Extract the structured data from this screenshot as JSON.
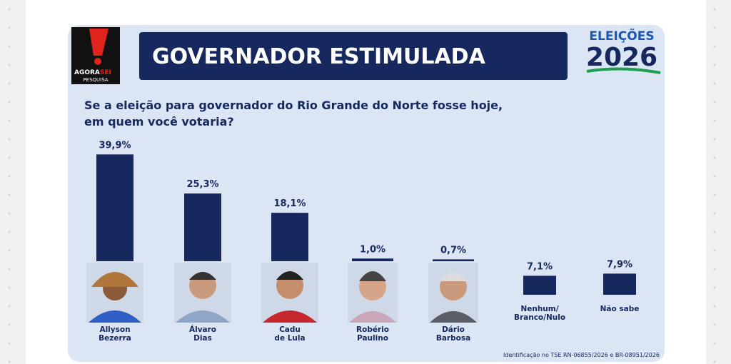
{
  "logo": {
    "name_a": "AGORA",
    "name_b": "SEI",
    "tagline": "PESQUISA"
  },
  "badge": {
    "line1": "ELEIÇÕES",
    "line2": "2026"
  },
  "footer": "Identificação no TSE RN-06855/2026 e BR-08951/2026",
  "chart_data": {
    "type": "bar",
    "title": "GOVERNADOR ESTIMULADA",
    "subtitle": "Se a eleição para governador do Rio Grande do Norte fosse hoje,\nem quem você votaria?",
    "categories": [
      "Allyson\nBezerra",
      "Álvaro\nDias",
      "Cadu\nde Lula",
      "Robério\nPaulino",
      "Dário\nBarbosa",
      "Nenhum/\nBranco/Nulo",
      "Não sabe"
    ],
    "values": [
      39.9,
      25.3,
      18.1,
      1.0,
      0.7,
      7.1,
      7.9
    ],
    "value_labels": [
      "39,9%",
      "25,3%",
      "18,1%",
      "1,0%",
      "0,7%",
      "7,1%",
      "7,9%"
    ],
    "color": "#16285e"
  }
}
